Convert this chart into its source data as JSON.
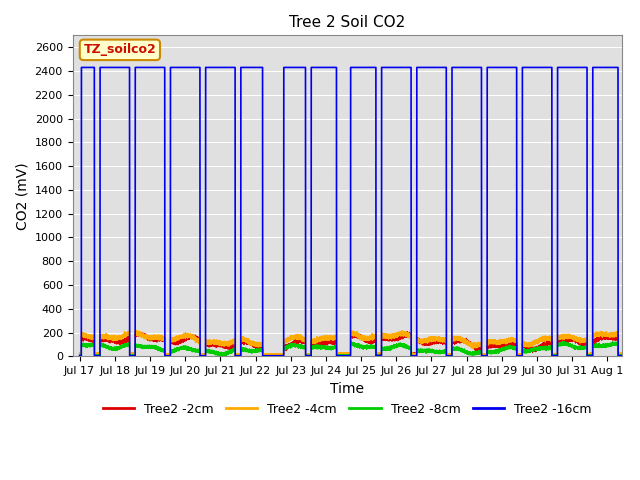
{
  "title": "Tree 2 Soil CO2",
  "ylabel": "CO2 (mV)",
  "xlabel": "Time",
  "ylim": [
    0,
    2700
  ],
  "start_day": 17,
  "yticks": [
    0,
    200,
    400,
    600,
    800,
    1000,
    1200,
    1400,
    1600,
    1800,
    2000,
    2200,
    2400,
    2600
  ],
  "xtick_labels": [
    "Jul 17",
    "Jul 18",
    "Jul 19",
    "Jul 20",
    "Jul 21",
    "Jul 22",
    "Jul 23",
    "Jul 24",
    "Jul 25",
    "Jul 26",
    "Jul 27",
    "Jul 28",
    "Jul 29",
    "Jul 30",
    "Jul 31",
    "Aug 1"
  ],
  "xtick_positions": [
    0,
    1,
    2,
    3,
    4,
    5,
    6,
    7,
    8,
    9,
    10,
    11,
    12,
    13,
    14,
    15
  ],
  "colors": {
    "red": "#dd0000",
    "orange": "#ffaa00",
    "green": "#00cc00",
    "blue": "#0000ee"
  },
  "legend_label": "TZ_soilco2",
  "series_labels": [
    "Tree2 -2cm",
    "Tree2 -4cm",
    "Tree2 -8cm",
    "Tree2 -16cm"
  ],
  "fig_bg_color": "#ffffff",
  "plot_bg_color": "#e0e0e0",
  "title_fontsize": 11,
  "axis_label_fontsize": 10,
  "tick_fontsize": 8,
  "legend_fontsize": 9,
  "blue_pulse_high": 2430,
  "blue_pulse_low": 5,
  "blue_pulses": [
    [
      0.05,
      0.42
    ],
    [
      0.58,
      1.42
    ],
    [
      1.58,
      2.42
    ],
    [
      2.58,
      3.42
    ],
    [
      3.58,
      4.42
    ],
    [
      4.58,
      5.2
    ],
    [
      5.8,
      6.42
    ],
    [
      6.58,
      7.3
    ],
    [
      7.7,
      8.42
    ],
    [
      8.58,
      9.42
    ],
    [
      9.58,
      10.42
    ],
    [
      10.58,
      11.42
    ],
    [
      11.58,
      12.42
    ],
    [
      12.58,
      13.42
    ],
    [
      13.58,
      14.42
    ],
    [
      14.58,
      15.3
    ]
  ],
  "xlim": [
    -0.2,
    15.4
  ]
}
